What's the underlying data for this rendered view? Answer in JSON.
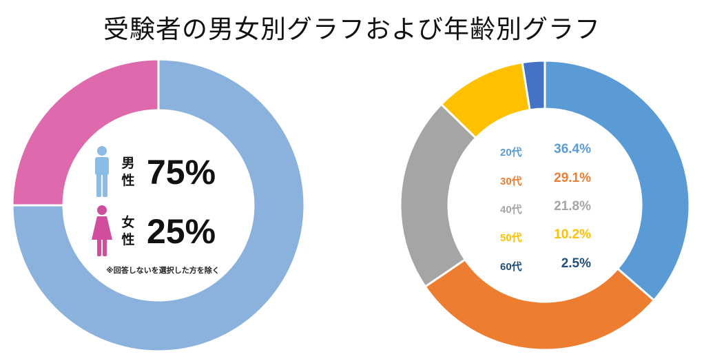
{
  "title": "受験者の男女別グラフおよび年齢別グラフ",
  "gender": {
    "male_label_chars": [
      "男",
      "性"
    ],
    "male_value": "75%",
    "female_label_chars": [
      "女",
      "性"
    ],
    "female_value": "25%",
    "note": "※回答しないを選択した方を除く"
  },
  "chart_data": [
    {
      "type": "pie",
      "title": "男女別",
      "categories": [
        "男性",
        "女性"
      ],
      "values": [
        75,
        25
      ],
      "colors": [
        "#8AB2DD",
        "#DE69AC"
      ]
    },
    {
      "type": "pie",
      "title": "年齢別",
      "categories": [
        "20代",
        "30代",
        "40代",
        "50代",
        "60代"
      ],
      "values": [
        36.4,
        29.1,
        21.8,
        10.2,
        2.5
      ],
      "labels": [
        "36.4%",
        "29.1%",
        "21.8%",
        "10.2%",
        "2.5%"
      ],
      "colors": [
        "#5B9BD5",
        "#ED7D31",
        "#A5A5A5",
        "#FFC000",
        "#4472C4"
      ],
      "text_colors": [
        "#5B9BD5",
        "#ED7D31",
        "#A5A5A5",
        "#FFC000",
        "#1F4E79"
      ]
    }
  ],
  "icons": {
    "male": "male-person-icon",
    "female": "female-person-icon"
  }
}
